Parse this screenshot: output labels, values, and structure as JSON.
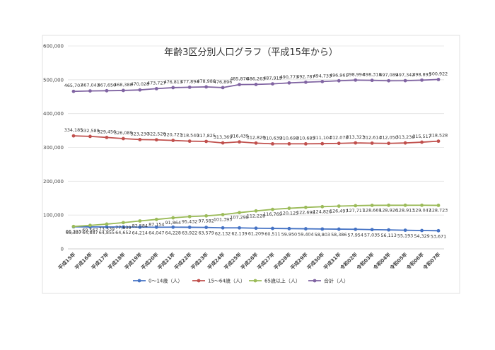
{
  "chart_data": {
    "type": "line",
    "title": "年齢3区分別人口グラフ（平成15年から）",
    "xlabel": "",
    "ylabel": "",
    "ylim": [
      0,
      600000
    ],
    "yticks": [
      "0",
      "100,000",
      "200,000",
      "300,000",
      "400,000",
      "500,000",
      "600,000"
    ],
    "grid": true,
    "legend_position": "bottom",
    "categories": [
      "平成15年",
      "平成16年",
      "平成17年",
      "平成18年",
      "平成19年",
      "平成20年",
      "平成21年",
      "平成22年",
      "平成23年",
      "平成24年",
      "平成25年",
      "平成26年",
      "平成27年",
      "平成28年",
      "平成29年",
      "平成30年",
      "平成31年",
      "令和02年",
      "令和03年",
      "令和04年",
      "令和05年",
      "令和06年",
      "令和07年"
    ],
    "series": [
      {
        "name": "0～14歳（人）",
        "color": "#4472c4",
        "values": [
          65307,
          64887,
          64855,
          64652,
          64214,
          64047,
          64228,
          63922,
          63579,
          62132,
          62139,
          61209,
          60511,
          59950,
          59404,
          58803,
          58386,
          57954,
          57035,
          56113,
          55193,
          54329,
          53671
        ],
        "labels": [
          "65,307",
          "64,887",
          "64,855",
          "64,652",
          "64,214",
          "64,047",
          "64,228",
          "63,922",
          "63,579",
          "62,132",
          "62,139",
          "61,209",
          "60,511",
          "59,950",
          "59,404",
          "58,803",
          "58,386",
          "57,954",
          "57,035",
          "56,113",
          "55,193",
          "54,329",
          "53,671"
        ]
      },
      {
        "name": "15～64歳（人）",
        "color": "#c0504d",
        "values": [
          334185,
          332589,
          329456,
          326089,
          323230,
          322526,
          320721,
          318540,
          317825,
          313369,
          316439,
          312826,
          310639,
          310698,
          310685,
          311104,
          312078,
          313323,
          312614,
          312050,
          313236,
          315517,
          318528
        ],
        "labels": [
          "334,185",
          "332,589",
          "329,456",
          "326,089",
          "323,230",
          "322,526",
          "320,721",
          "318,540",
          "317,825",
          "313,369",
          "316,439",
          "312,826",
          "310,639",
          "310,698",
          "310,685",
          "311,104",
          "312,078",
          "313,323",
          "312,614",
          "312,050",
          "313,236",
          "315,517",
          "318,528"
        ]
      },
      {
        "name": "65歳以上（人）",
        "color": "#9bbb59",
        "values": [
          66215,
          69567,
          73339,
          77639,
          82584,
          87154,
          91864,
          95432,
          97582,
          101395,
          107298,
          112228,
          116769,
          120125,
          122698,
          124826,
          126497,
          127717,
          128669,
          128926,
          128913,
          129047,
          128723
        ],
        "labels": [
          "66,215",
          "69,567",
          "73,339",
          "77,639",
          "82,584",
          "87,154",
          "91,864",
          "95,432",
          "97,582",
          "101,395",
          "107,298",
          "112,228",
          "116,769",
          "120,125",
          "122,698",
          "124,826",
          "126,497",
          "127,717",
          "128,669",
          "128,926",
          "128,913",
          "129,047",
          "128,723"
        ]
      },
      {
        "name": "合計（人）",
        "color": "#8064a2",
        "values": [
          465707,
          467043,
          467650,
          468380,
          470028,
          473727,
          476813,
          477894,
          478986,
          476896,
          485876,
          486263,
          487919,
          490773,
          492787,
          494733,
          496961,
          498994,
          498318,
          497089,
          497342,
          498893,
          500922
        ],
        "labels": [
          "465,707",
          "467,043",
          "467,650",
          "468,380",
          "470,028",
          "473,727",
          "476,813",
          "477,894",
          "478,986",
          "476,896",
          "485,876",
          "486,263",
          "487,919",
          "490,773",
          "492,787",
          "494,733",
          "496,961",
          "498,994",
          "498,318",
          "497,089",
          "497,342",
          "498,893",
          "500,922"
        ]
      }
    ]
  }
}
